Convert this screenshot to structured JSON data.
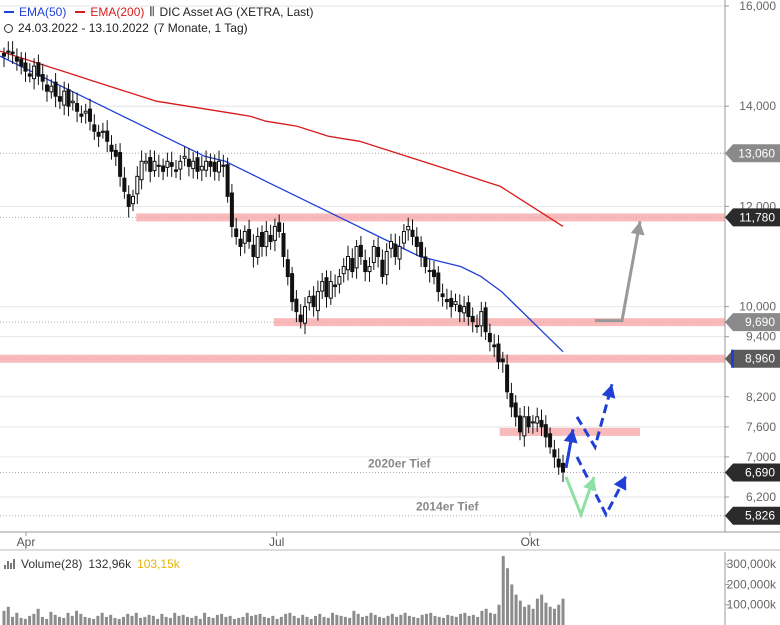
{
  "legend": {
    "ema50_label": "EMA(50)",
    "ema200_label": "EMA(200)",
    "instrument": "DIC Asset AG (XETRA, Last)",
    "period": "24.03.2022 - 13.10.2022",
    "period_desc": "(7 Monate, 1 Tag)"
  },
  "colors": {
    "ema50": "#1f3fd6",
    "ema200": "#d81b1b",
    "zone": "#f5a3a3",
    "arrow_blue": "#1f3fd6",
    "arrow_green": "#8fe0a3",
    "arrow_gray": "#999999"
  },
  "chart_data": {
    "type": "candlestick",
    "y_ticks": [
      "16,000",
      "14,000",
      "12,000",
      "10,000",
      "9,400",
      "8,200",
      "7,600",
      "7,000",
      "6,200"
    ],
    "y_tick_values": [
      16.0,
      14.0,
      12.0,
      10.0,
      9.4,
      8.2,
      7.6,
      7.0,
      6.2
    ],
    "x_ticks": [
      "Apr",
      "Jul",
      "Okt"
    ],
    "x_tick_dates": [
      "2022-04-01",
      "2022-07-01",
      "2022-10-01"
    ],
    "date_range": [
      "2022-03-24",
      "2022-10-13"
    ],
    "ylim": [
      5.75,
      16.1
    ],
    "price_flags": [
      {
        "label": "13,060",
        "value": 13.06,
        "style": "gray"
      },
      {
        "label": "11,780",
        "value": 11.78,
        "style": "dark"
      },
      {
        "label": "9,690",
        "value": 9.69,
        "style": "gray"
      },
      {
        "label": "8,960",
        "value": 8.96,
        "style": "blue"
      },
      {
        "label": "6,690",
        "value": 6.69,
        "style": "dark"
      },
      {
        "label": "5,826",
        "value": 5.826,
        "style": "dark"
      }
    ],
    "annotations": [
      {
        "text": "2020er Tief",
        "value": 6.69
      },
      {
        "text": "2014er Tief",
        "value": 5.826
      }
    ],
    "resistance_zones": [
      {
        "value": 11.78,
        "start": "2022-05-11",
        "end": "2022-10-13"
      },
      {
        "value": 9.69,
        "start": "2022-06-30",
        "end": "2022-10-13"
      },
      {
        "value": 8.96,
        "start": "2022-03-24",
        "end": "2022-10-13"
      },
      {
        "value": 7.5,
        "start": "2022-09-20",
        "end": "2022-10-13"
      }
    ],
    "close_series": [
      15.0,
      15.1,
      15.05,
      14.9,
      14.8,
      14.7,
      14.6,
      14.8,
      14.6,
      14.5,
      14.3,
      14.4,
      14.2,
      14.1,
      14.3,
      14.0,
      14.1,
      13.9,
      13.8,
      13.9,
      13.7,
      13.5,
      13.4,
      13.5,
      13.3,
      13.1,
      13.0,
      12.6,
      12.3,
      12.0,
      12.2,
      12.6,
      12.9,
      12.9,
      12.7,
      12.9,
      12.8,
      12.7,
      12.9,
      12.8,
      12.7,
      12.9,
      13.0,
      12.8,
      12.9,
      12.7,
      12.8,
      12.9,
      12.8,
      12.7,
      12.9,
      12.8,
      12.2,
      11.6,
      11.4,
      11.2,
      11.5,
      11.3,
      11.0,
      11.4,
      11.2,
      11.5,
      11.3,
      11.6,
      11.5,
      11.0,
      10.6,
      10.1,
      9.9,
      9.7,
      10.0,
      10.2,
      10.0,
      10.3,
      10.5,
      10.2,
      10.5,
      10.4,
      10.6,
      10.8,
      11.0,
      10.7,
      11.2,
      11.0,
      10.7,
      10.8,
      11.2,
      11.0,
      10.6,
      11.1,
      11.3,
      11.0,
      11.2,
      11.5,
      11.6,
      11.4,
      11.2,
      11.0,
      10.8,
      10.7,
      10.6,
      10.3,
      10.2,
      10.1,
      10.0,
      10.1,
      9.9,
      10.0,
      9.8,
      9.7,
      9.6,
      9.9,
      9.5,
      9.3,
      9.2,
      8.9,
      8.9,
      8.3,
      8.0,
      7.8,
      7.5,
      7.8,
      7.6,
      7.7,
      7.8,
      7.6,
      7.4,
      7.2,
      7.0,
      6.8,
      6.7
    ],
    "ema50": [
      15.0,
      14.9,
      14.8,
      14.7,
      14.6,
      14.5,
      14.4,
      14.3,
      14.2,
      14.1,
      14.0,
      13.9,
      13.8,
      13.7,
      13.6,
      13.5,
      13.4,
      13.3,
      13.2,
      13.1,
      13.0,
      12.95,
      12.9,
      12.8,
      12.7,
      12.6,
      12.5,
      12.4,
      12.3,
      12.2,
      12.1,
      12.0,
      11.9,
      11.8,
      11.7,
      11.6,
      11.5,
      11.4,
      11.3,
      11.2,
      11.1,
      11.0,
      10.95,
      10.9,
      10.85,
      10.8,
      10.7,
      10.6,
      10.45,
      10.3,
      10.1,
      9.9,
      9.7,
      9.5,
      9.3,
      9.1
    ],
    "ema200": [
      15.1,
      15.0,
      14.9,
      14.8,
      14.7,
      14.6,
      14.5,
      14.4,
      14.3,
      14.2,
      14.1,
      14.05,
      14.0,
      13.95,
      13.9,
      13.85,
      13.8,
      13.7,
      13.65,
      13.6,
      13.5,
      13.4,
      13.35,
      13.3,
      13.2,
      13.1,
      13.0,
      12.9,
      12.8,
      12.7,
      12.6,
      12.5,
      12.4,
      12.2,
      12.0,
      11.8,
      11.6
    ],
    "volume": {
      "label": "Volume(28)",
      "value1": "132,96k",
      "value2": "103,15k",
      "ticks": [
        "300,000k",
        "200,000k",
        "100,000k"
      ],
      "tick_values": [
        300,
        200,
        100
      ],
      "ylim": [
        0,
        360
      ],
      "bars": [
        70,
        90,
        40,
        60,
        35,
        30,
        45,
        55,
        80,
        40,
        30,
        65,
        50,
        40,
        35,
        60,
        45,
        70,
        55,
        40,
        35,
        30,
        45,
        60,
        40,
        50,
        35,
        30,
        40,
        55,
        45,
        60,
        35,
        40,
        50,
        45,
        30,
        55,
        40,
        35,
        60,
        45,
        50,
        40,
        35,
        45,
        30,
        60,
        40,
        35,
        50,
        55,
        40,
        45,
        30,
        35,
        40,
        60,
        45,
        50,
        55,
        40,
        35,
        45,
        30,
        40,
        55,
        60,
        45,
        35,
        50,
        40,
        30,
        45,
        55,
        40,
        35,
        60,
        50,
        45,
        40,
        35,
        70,
        55,
        40,
        45,
        60,
        50,
        40,
        35,
        45,
        55,
        40,
        50,
        60,
        45,
        40,
        35,
        50,
        55,
        60,
        45,
        40,
        35,
        50,
        45,
        40,
        55,
        60,
        45,
        50,
        40,
        70,
        80,
        60,
        55,
        100,
        340,
        280,
        200,
        150,
        120,
        90,
        100,
        80,
        130,
        150,
        110,
        90,
        80,
        100,
        130
      ]
    }
  }
}
